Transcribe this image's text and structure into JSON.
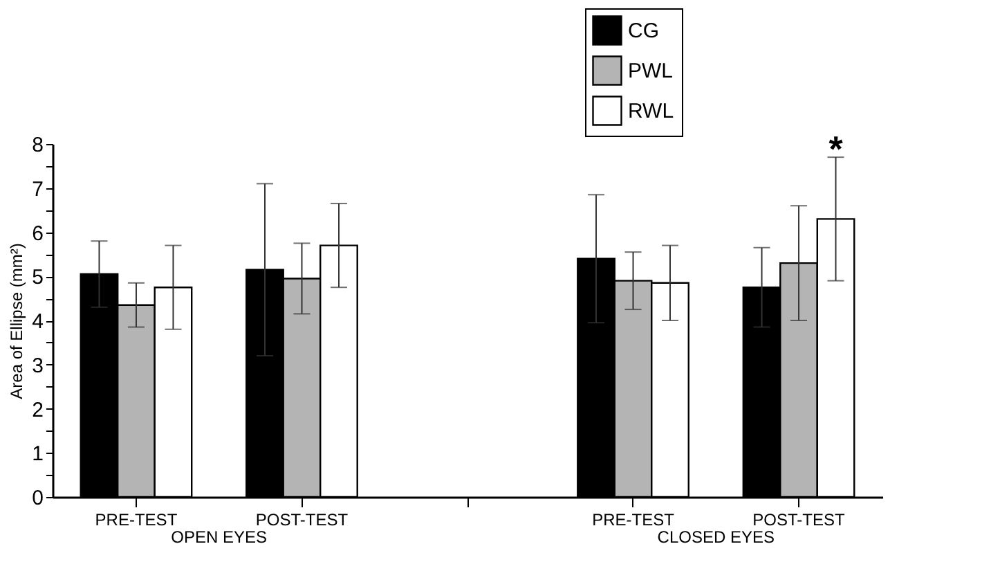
{
  "chart_data": {
    "type": "bar",
    "categories": [
      "PRE-TEST",
      "POST-TEST",
      null,
      "PRE-TEST",
      "POST-TEST"
    ],
    "series": [
      {
        "name": "CG",
        "color": "#000000",
        "values": [
          5.05,
          5.15,
          null,
          5.4,
          4.75
        ],
        "errors": [
          0.75,
          1.95,
          null,
          1.45,
          0.9
        ]
      },
      {
        "name": "PWL",
        "color": "#b4b4b4",
        "values": [
          4.35,
          4.95,
          null,
          4.9,
          5.3
        ],
        "errors": [
          0.5,
          0.8,
          null,
          0.65,
          1.3
        ]
      },
      {
        "name": "RWL",
        "color": "#ffffff",
        "values": [
          4.75,
          5.7,
          null,
          4.85,
          6.3
        ],
        "errors": [
          0.95,
          0.95,
          null,
          0.85,
          1.4
        ]
      }
    ],
    "ylabel": "Area of Ellipse (mm²)",
    "ylim": [
      0,
      8
    ],
    "yticks": [
      0,
      {
        "value": 0.5,
        "label": null
      },
      1,
      {
        "value": 1.5,
        "label": null
      },
      2,
      {
        "value": 2.5,
        "label": null
      },
      3,
      {
        "value": 3.5,
        "label": null
      },
      4,
      {
        "value": 4.5,
        "label": null
      },
      5,
      {
        "value": 5.5,
        "label": null
      },
      6,
      {
        "value": 6.5,
        "label": null
      },
      7,
      {
        "value": 7.5,
        "label": null
      },
      8
    ],
    "annotations": [
      "OPEN EYES",
      "CLOSED EYES",
      "*"
    ],
    "legend": "top right",
    "grid": false
  }
}
